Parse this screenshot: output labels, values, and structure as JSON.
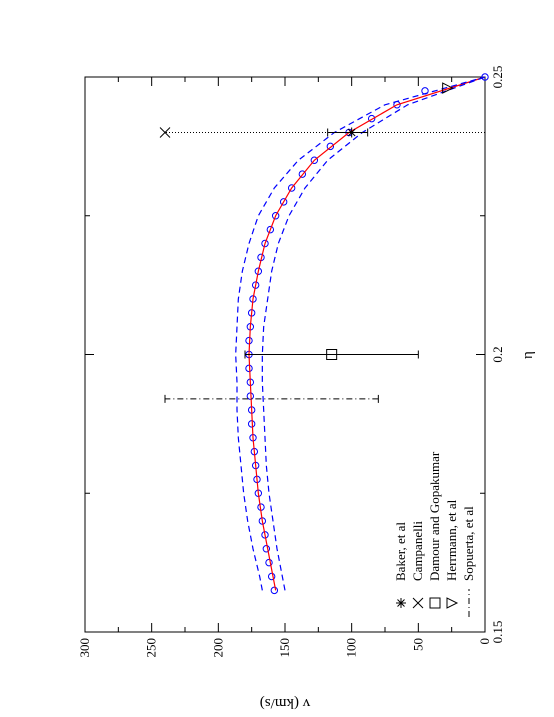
{
  "chart_data": {
    "type": "scatter",
    "title": "",
    "xlabel": "η",
    "ylabel": "v (km/s)",
    "xlim": [
      0.15,
      0.25
    ],
    "ylim": [
      0,
      300
    ],
    "x_ticks": [
      "0.15",
      "0.2",
      "0.25"
    ],
    "y_ticks": [
      "0",
      "50",
      "100",
      "150",
      "200",
      "250",
      "300"
    ],
    "grid": false,
    "legend_placement": "bottom-left",
    "series": [
      {
        "name": "",
        "kind": "circles",
        "color": "#0000ff",
        "x": [
          0.1575,
          0.16,
          0.1625,
          0.165,
          0.1675,
          0.17,
          0.1725,
          0.175,
          0.1775,
          0.18,
          0.1825,
          0.185,
          0.1875,
          0.19,
          0.1925,
          0.195,
          0.1975,
          0.2,
          0.2025,
          0.205,
          0.2075,
          0.21,
          0.2125,
          0.215,
          0.2175,
          0.22,
          0.2225,
          0.225,
          0.2275,
          0.23,
          0.2325,
          0.235,
          0.2375,
          0.24,
          0.2425,
          0.245,
          0.2475,
          0.25
        ],
        "y": [
          158,
          160,
          162,
          164,
          165,
          167,
          168,
          170,
          171,
          172,
          173,
          174,
          175,
          175,
          176,
          176,
          177,
          177,
          177,
          176,
          175,
          174,
          172,
          170,
          168,
          165,
          161,
          157,
          151,
          145,
          137,
          128,
          116,
          102,
          85,
          66,
          45,
          0
        ]
      },
      {
        "name": "",
        "kind": "line",
        "color": "#ff0000",
        "x": [
          0.1575,
          0.16,
          0.165,
          0.17,
          0.175,
          0.18,
          0.185,
          0.19,
          0.195,
          0.2,
          0.205,
          0.21,
          0.215,
          0.22,
          0.225,
          0.23,
          0.235,
          0.24,
          0.245,
          0.25
        ],
        "y": [
          157,
          159,
          163,
          167,
          170,
          172,
          174,
          175,
          176,
          177,
          176,
          174,
          170,
          165,
          157,
          145,
          128,
          102,
          66,
          0
        ]
      },
      {
        "name": "",
        "kind": "dashed",
        "color": "#0000ff",
        "x": [
          0.1575,
          0.16,
          0.165,
          0.17,
          0.175,
          0.18,
          0.185,
          0.19,
          0.195,
          0.2,
          0.205,
          0.21,
          0.215,
          0.22,
          0.225,
          0.23,
          0.235,
          0.24,
          0.245,
          0.25
        ],
        "y": [
          167,
          169,
          174,
          178,
          181,
          183,
          185,
          186,
          186,
          187,
          186,
          185,
          182,
          177,
          170,
          158,
          140,
          113,
          75,
          0
        ]
      },
      {
        "name": "",
        "kind": "dashed",
        "color": "#0000ff",
        "x": [
          0.1575,
          0.16,
          0.165,
          0.17,
          0.175,
          0.18,
          0.185,
          0.19,
          0.195,
          0.2,
          0.205,
          0.21,
          0.215,
          0.22,
          0.225,
          0.23,
          0.235,
          0.24,
          0.245,
          0.25
        ],
        "y": [
          150,
          152,
          156,
          159,
          162,
          164,
          165,
          166,
          167,
          167,
          166,
          163,
          160,
          155,
          147,
          135,
          118,
          92,
          58,
          0
        ]
      }
    ],
    "points": [
      {
        "name": "Baker, et al",
        "marker": "asterisk",
        "x": 0.24,
        "y": 100,
        "err_low": 88,
        "err_high": 118
      },
      {
        "name": "Campanelli",
        "marker": "cross",
        "x": 0.24,
        "y": 240
      },
      {
        "name": "Damour and Gopakumar",
        "marker": "square",
        "x": 0.2,
        "y": 115,
        "err_low": 50,
        "err_high": 180
      },
      {
        "name": "Herrmann, et al",
        "marker": "triangle-down",
        "x": 0.248,
        "y": 28
      }
    ],
    "vertical_lines": [
      {
        "name": "Sopuerta, et al",
        "style": "dash-dot",
        "x": 0.192,
        "y_low": 80,
        "y_high": 240
      },
      {
        "name": "",
        "style": "dotted",
        "x": 0.24,
        "y_low": 0,
        "y_high": 240
      }
    ],
    "legend": [
      "Baker, et al",
      "Campanelli",
      "Damour and Gopakumar",
      "Herrmann, et al",
      "Sopuerta, et al"
    ]
  }
}
